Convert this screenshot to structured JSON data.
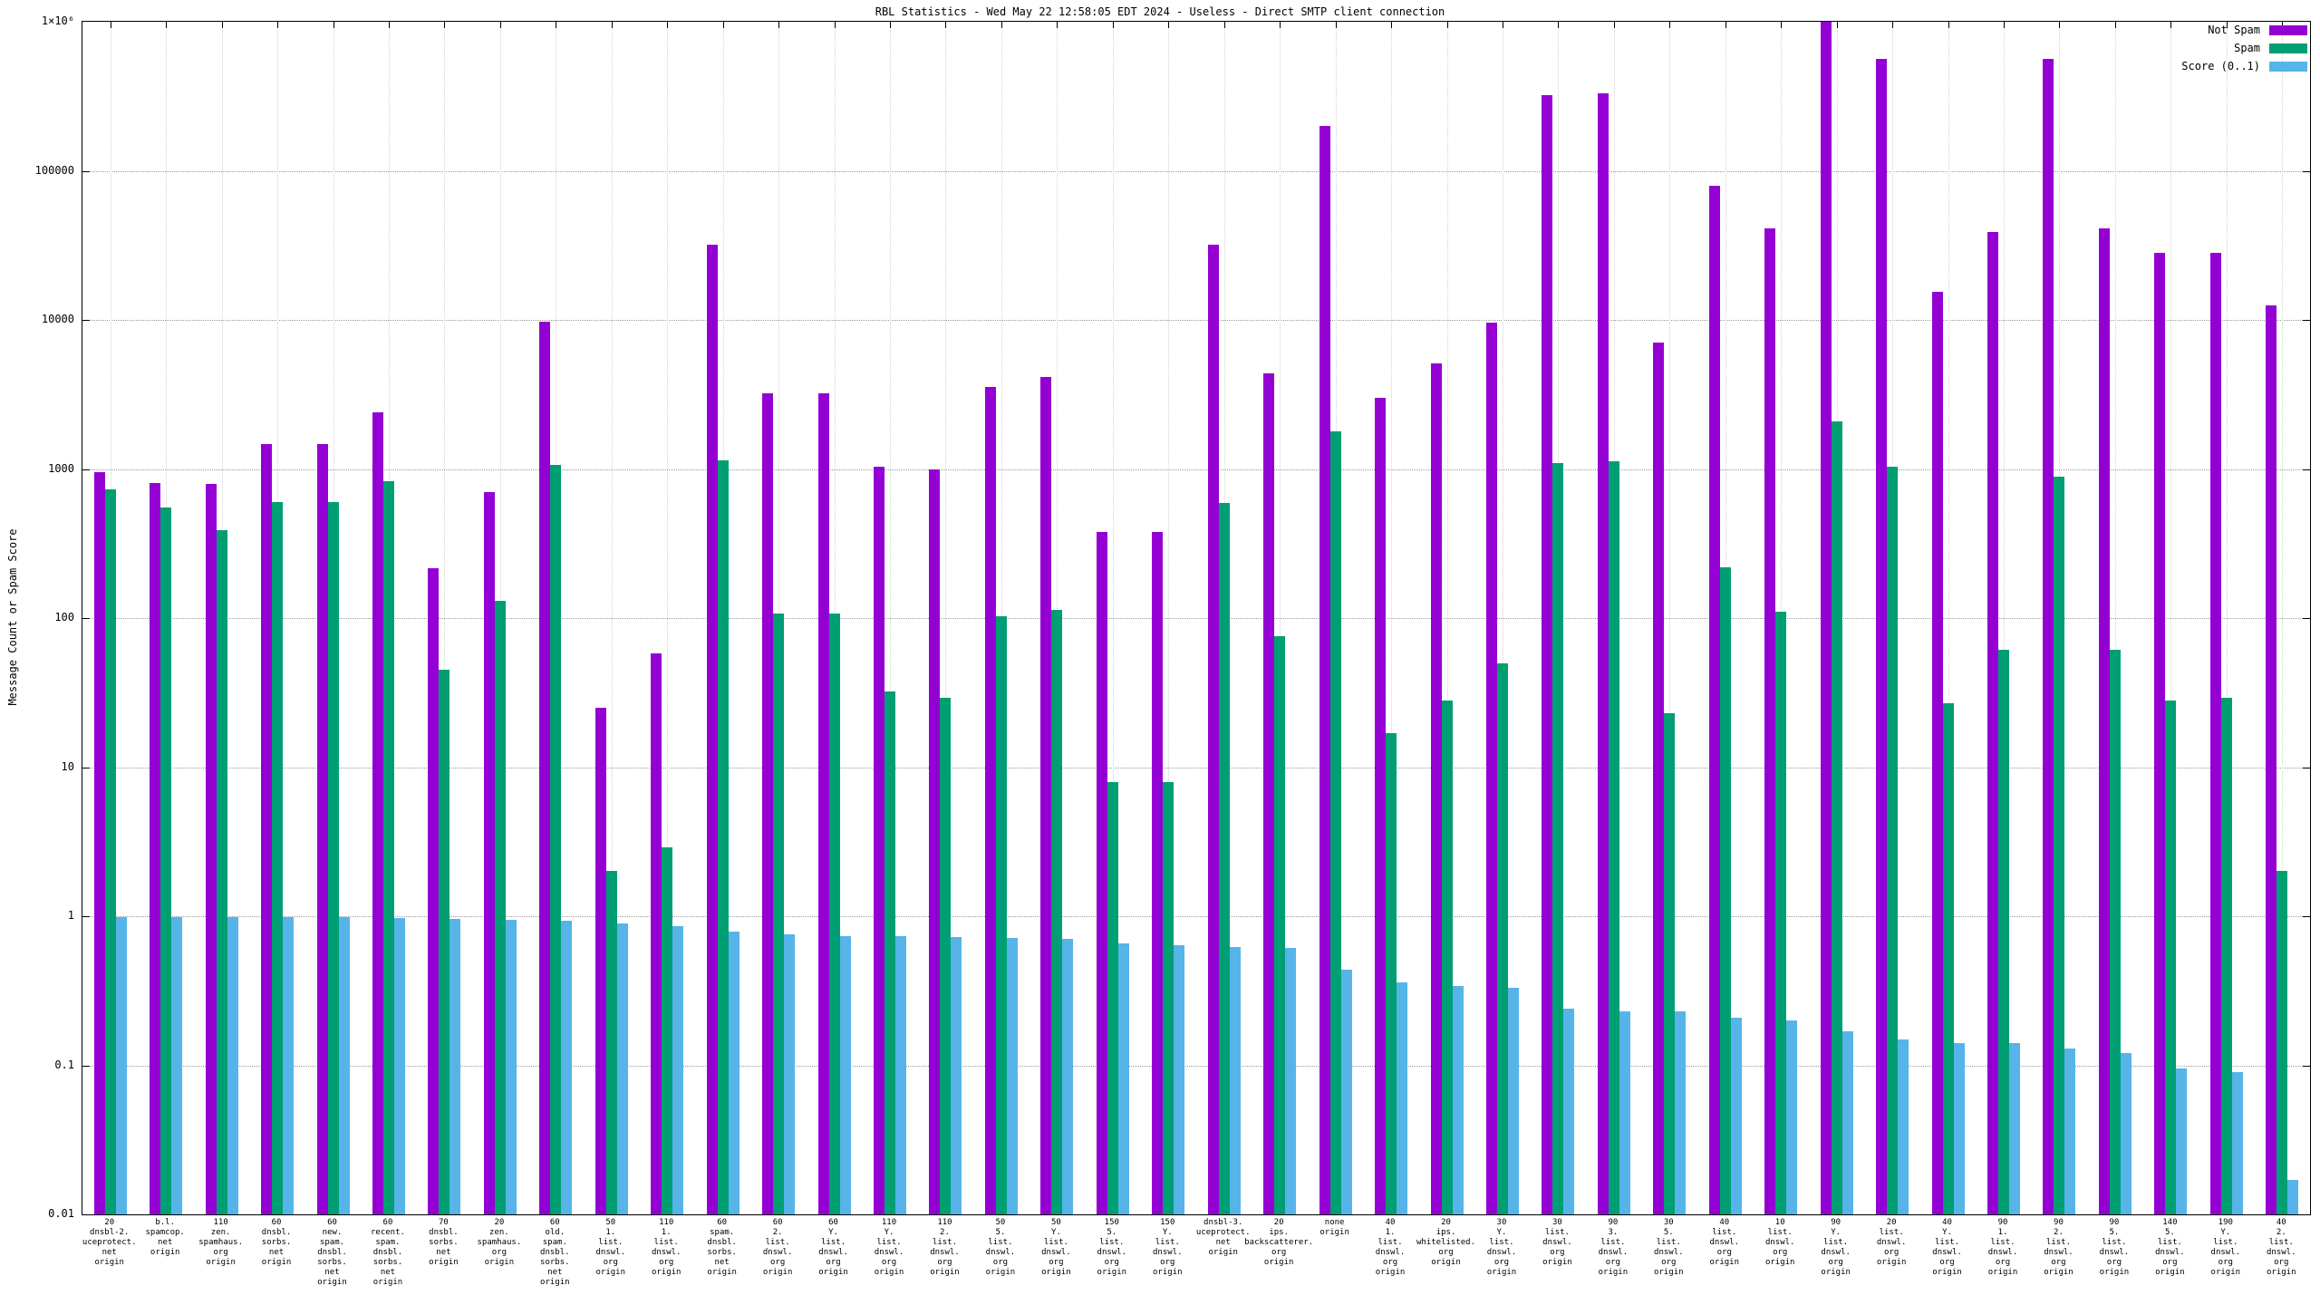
{
  "title": "RBL Statistics - Wed May 22 12:58:05 EDT 2024 - Useless - Direct SMTP client connection",
  "ylabel": "Message Count or Spam Score",
  "legend": {
    "items": [
      {
        "label": "Not Spam",
        "color": "#9400d3"
      },
      {
        "label": "Spam",
        "color": "#009e73"
      },
      {
        "label": "Score (0..1)",
        "color": "#56b4e9"
      }
    ]
  },
  "chart_data": {
    "type": "bar",
    "scale": "log",
    "ylim": [
      0.01,
      1000000
    ],
    "grid": true,
    "legend_position": "top-right",
    "y_ticks": [
      {
        "label": "0.01",
        "value": 0.01
      },
      {
        "label": "0.1",
        "value": 0.1
      },
      {
        "label": "1",
        "value": 1
      },
      {
        "label": "10",
        "value": 10
      },
      {
        "label": "100",
        "value": 100
      },
      {
        "label": "1000",
        "value": 1000
      },
      {
        "label": "10000",
        "value": 10000
      },
      {
        "label": "100000",
        "value": 100000
      },
      {
        "label": "1×10⁶",
        "value": 1000000
      }
    ],
    "categories": [
      [
        "20",
        "dnsbl-2.",
        "uceprotect.",
        "net",
        "origin"
      ],
      [
        "b.l.",
        "spamcop.",
        "net",
        "origin"
      ],
      [
        "110",
        "zen.",
        "spamhaus.",
        "org",
        "origin"
      ],
      [
        "60",
        "dnsbl.",
        "sorbs.",
        "net",
        "origin"
      ],
      [
        "60",
        "new.",
        "spam.",
        "dnsbl.",
        "sorbs.",
        "net",
        "origin"
      ],
      [
        "60",
        "recent.",
        "spam.",
        "dnsbl.",
        "sorbs.",
        "net",
        "origin"
      ],
      [
        "70",
        "dnsbl.",
        "sorbs.",
        "net",
        "origin"
      ],
      [
        "20",
        "zen.",
        "spamhaus.",
        "org",
        "origin"
      ],
      [
        "60",
        "old.",
        "spam.",
        "dnsbl.",
        "sorbs.",
        "net",
        "origin"
      ],
      [
        "50",
        "1.",
        "list.",
        "dnswl.",
        "org",
        "origin"
      ],
      [
        "110",
        "1.",
        "list.",
        "dnswl.",
        "org",
        "origin"
      ],
      [
        "60",
        "spam.",
        "dnsbl.",
        "sorbs.",
        "net",
        "origin"
      ],
      [
        "60",
        "2.",
        "list.",
        "dnswl.",
        "org",
        "origin"
      ],
      [
        "60",
        "Y.",
        "list.",
        "dnswl.",
        "org",
        "origin"
      ],
      [
        "110",
        "Y.",
        "list.",
        "dnswl.",
        "org",
        "origin"
      ],
      [
        "110",
        "2.",
        "list.",
        "dnswl.",
        "org",
        "origin"
      ],
      [
        "50",
        "5.",
        "list.",
        "dnswl.",
        "org",
        "origin"
      ],
      [
        "50",
        "Y.",
        "list.",
        "dnswl.",
        "org",
        "origin"
      ],
      [
        "150",
        "5.",
        "list.",
        "dnswl.",
        "org",
        "origin"
      ],
      [
        "150",
        "Y.",
        "list.",
        "dnswl.",
        "org",
        "origin"
      ],
      [
        "dnsbl-3.",
        "uceprotect.",
        "net",
        "origin"
      ],
      [
        "20",
        "ips.",
        "backscatterer.",
        "org",
        "origin"
      ],
      [
        "none",
        "origin"
      ],
      [
        "40",
        "1.",
        "list.",
        "dnswl.",
        "org",
        "origin"
      ],
      [
        "20",
        "ips.",
        "whitelisted.",
        "org",
        "origin"
      ],
      [
        "30",
        "Y.",
        "list.",
        "dnswl.",
        "org",
        "origin"
      ],
      [
        "30",
        "list.",
        "dnswl.",
        "org",
        "origin"
      ],
      [
        "90",
        "3.",
        "list.",
        "dnswl.",
        "org",
        "origin"
      ],
      [
        "30",
        "5.",
        "list.",
        "dnswl.",
        "org",
        "origin"
      ],
      [
        "40",
        "list.",
        "dnswl.",
        "org",
        "origin"
      ],
      [
        "10",
        "list.",
        "dnswl.",
        "org",
        "origin"
      ],
      [
        "90",
        "Y.",
        "list.",
        "dnswl.",
        "org",
        "origin"
      ],
      [
        "20",
        "list.",
        "dnswl.",
        "org",
        "origin"
      ],
      [
        "40",
        "Y.",
        "list.",
        "dnswl.",
        "org",
        "origin"
      ],
      [
        "90",
        "1.",
        "list.",
        "dnswl.",
        "org",
        "origin"
      ],
      [
        "90",
        "2.",
        "list.",
        "dnswl.",
        "org",
        "origin"
      ],
      [
        "90",
        "5.",
        "list.",
        "dnswl.",
        "org",
        "origin"
      ],
      [
        "140",
        "5.",
        "list.",
        "dnswl.",
        "org",
        "origin"
      ],
      [
        "190",
        "Y.",
        "list.",
        "dnswl.",
        "org",
        "origin"
      ],
      [
        "40",
        "2.",
        "list.",
        "dnswl.",
        "org",
        "origin"
      ]
    ],
    "series": [
      {
        "name": "Not Spam",
        "color": "#9400d3",
        "values": [
          950,
          800,
          790,
          1480,
          1480,
          2400,
          215,
          700,
          9700,
          25,
          58,
          32000,
          3200,
          3200,
          1030,
          990,
          3550,
          4150,
          380,
          380,
          32000,
          4400,
          200000,
          3000,
          5100,
          9600,
          320000,
          330000,
          7000,
          79000,
          41000,
          1100000,
          560000,
          15500,
          39000,
          560000,
          41000,
          28000,
          28000,
          12500
        ]
      },
      {
        "name": "Spam",
        "color": "#009e73",
        "values": [
          730,
          550,
          390,
          600,
          600,
          830,
          45,
          130,
          1060,
          2.0,
          2.9,
          1150,
          107,
          107,
          32,
          29,
          103,
          113,
          7.9,
          7.9,
          590,
          76,
          1800,
          17,
          28,
          50,
          1100,
          1120,
          23,
          220,
          110,
          2100,
          1030,
          27,
          61,
          890,
          61,
          28,
          29,
          2.0
        ]
      },
      {
        "name": "Score (0..1)",
        "color": "#56b4e9",
        "values": [
          0.99,
          0.99,
          0.99,
          0.98,
          0.98,
          0.97,
          0.96,
          0.95,
          0.93,
          0.9,
          0.86,
          0.79,
          0.76,
          0.74,
          0.73,
          0.72,
          0.71,
          0.7,
          0.66,
          0.64,
          0.62,
          0.61,
          0.44,
          0.36,
          0.34,
          0.33,
          0.24,
          0.23,
          0.23,
          0.21,
          0.2,
          0.17,
          0.15,
          0.14,
          0.14,
          0.13,
          0.12,
          0.095,
          0.09,
          0.017
        ]
      }
    ]
  }
}
